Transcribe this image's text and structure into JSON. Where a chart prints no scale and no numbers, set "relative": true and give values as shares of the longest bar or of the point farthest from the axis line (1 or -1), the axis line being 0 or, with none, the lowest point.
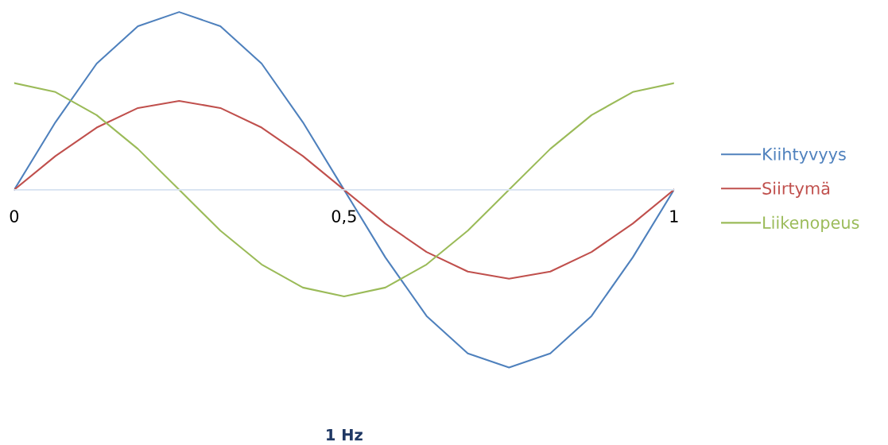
{
  "chart_data": {
    "type": "line",
    "relative": true,
    "xlabel": "1 Hz",
    "x": [
      0,
      0.0625,
      0.125,
      0.1875,
      0.25,
      0.3125,
      0.375,
      0.4375,
      0.5,
      0.5625,
      0.625,
      0.6875,
      0.75,
      0.8125,
      0.875,
      0.9375,
      1
    ],
    "xlim": [
      0,
      1
    ],
    "xticks": [
      0,
      {
        "value": 0.5,
        "label": "0,5"
      },
      1
    ],
    "series": [
      {
        "name": "Kiihtyvyys",
        "color": "#4f81bd",
        "values": [
          0,
          0.38,
          0.71,
          0.92,
          1,
          0.92,
          0.71,
          0.38,
          0,
          -0.38,
          -0.71,
          -0.92,
          -1,
          -0.92,
          -0.71,
          -0.38,
          0
        ]
      },
      {
        "name": "Siirtymä",
        "color": "#c0504d",
        "values": [
          0,
          0.19,
          0.35,
          0.46,
          0.5,
          0.46,
          0.35,
          0.19,
          0,
          -0.19,
          -0.35,
          -0.46,
          -0.5,
          -0.46,
          -0.35,
          -0.19,
          0
        ]
      },
      {
        "name": "Liikenopeus",
        "color": "#9bbb59",
        "values": [
          0.6,
          0.55,
          0.42,
          0.23,
          0,
          -0.23,
          -0.42,
          -0.55,
          -0.6,
          -0.55,
          -0.42,
          -0.23,
          0,
          0.23,
          0.42,
          0.55,
          0.6
        ]
      }
    ],
    "legend": "right",
    "grid": false,
    "marker": "none",
    "line_style": "solid"
  }
}
